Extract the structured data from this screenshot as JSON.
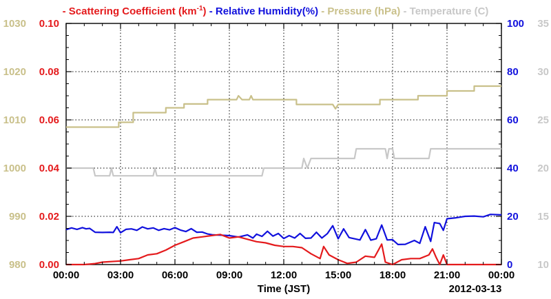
{
  "chart_data": {
    "type": "line",
    "legend": [
      {
        "label": "Scattering Coefficient (km",
        "sup": "-1",
        "suffix": ")",
        "color": "#e41a1c"
      },
      {
        "label": "Relative Humidity(%)",
        "color": "#1111dd"
      },
      {
        "label": "Pressure (hPa)",
        "color": "#c9c08a"
      },
      {
        "label": "Temperature (",
        "suffix": "C)",
        "color": "#c8c8c8"
      }
    ],
    "legend_dash": "-",
    "xlabel": "Time (JST)",
    "date_label": "2012-03-13",
    "x_ticks": [
      "00:00",
      "03:00",
      "06:00",
      "09:00",
      "12:00",
      "15:00",
      "18:00",
      "21:00",
      "00:00"
    ],
    "x_range_hours": [
      0,
      24
    ],
    "axes": {
      "pressure": {
        "side": "left-outer",
        "range": [
          980,
          1030
        ],
        "ticks": [
          "980",
          "990",
          "1000",
          "1010",
          "1020",
          "1030"
        ],
        "color": "#c9c08a"
      },
      "scattering": {
        "side": "left-inner",
        "range": [
          0,
          0.1
        ],
        "ticks": [
          "0.00",
          "0.02",
          "0.04",
          "0.06",
          "0.08",
          "0.10"
        ],
        "color": "#e41a1c"
      },
      "humidity": {
        "side": "right-inner",
        "range": [
          0,
          100
        ],
        "ticks": [
          "0",
          "20",
          "40",
          "60",
          "80",
          "100"
        ],
        "color": "#1111dd"
      },
      "temperature": {
        "side": "right-outer",
        "range": [
          10,
          35
        ],
        "ticks": [
          "10",
          "15",
          "20",
          "25",
          "30",
          "35"
        ],
        "color": "#c8c8c8"
      }
    },
    "grid": "dotted",
    "series": [
      {
        "name": "Pressure (hPa)",
        "axis": "pressure",
        "color": "#c9c08a",
        "points": [
          [
            0,
            1008.5
          ],
          [
            2.9,
            1008.5
          ],
          [
            2.9,
            1009.5
          ],
          [
            3.7,
            1009.5
          ],
          [
            3.7,
            1011.5
          ],
          [
            5.5,
            1011.5
          ],
          [
            5.5,
            1012.5
          ],
          [
            6.5,
            1012.5
          ],
          [
            6.5,
            1013.3
          ],
          [
            7.8,
            1013.3
          ],
          [
            7.8,
            1014.2
          ],
          [
            9.4,
            1014.2
          ],
          [
            9.5,
            1015.0
          ],
          [
            9.7,
            1014.2
          ],
          [
            10.1,
            1014.2
          ],
          [
            10.2,
            1015.0
          ],
          [
            10.3,
            1014.2
          ],
          [
            12.7,
            1014.2
          ],
          [
            12.7,
            1013.2
          ],
          [
            14.7,
            1013.2
          ],
          [
            14.85,
            1012.3
          ],
          [
            15.0,
            1013.2
          ],
          [
            17.3,
            1013.2
          ],
          [
            17.3,
            1014.2
          ],
          [
            19.4,
            1014.2
          ],
          [
            19.4,
            1015.0
          ],
          [
            21.0,
            1015.0
          ],
          [
            21.0,
            1016.0
          ],
          [
            22.5,
            1016.0
          ],
          [
            22.5,
            1017.0
          ],
          [
            24,
            1017.0
          ]
        ]
      },
      {
        "name": "Temperature (C)",
        "axis": "temperature",
        "color": "#c8c8c8",
        "points": [
          [
            0,
            20.0
          ],
          [
            1.5,
            20.0
          ],
          [
            1.6,
            19.2
          ],
          [
            2.4,
            19.2
          ],
          [
            2.5,
            20.0
          ],
          [
            2.6,
            19.2
          ],
          [
            4.8,
            19.2
          ],
          [
            4.9,
            20.0
          ],
          [
            5.0,
            19.2
          ],
          [
            10.8,
            19.2
          ],
          [
            10.9,
            20.0
          ],
          [
            13.0,
            20.0
          ],
          [
            13.1,
            21.0
          ],
          [
            13.3,
            20.0
          ],
          [
            13.5,
            21.0
          ],
          [
            15.9,
            21.0
          ],
          [
            16.0,
            22.0
          ],
          [
            17.6,
            22.0
          ],
          [
            17.7,
            21.0
          ],
          [
            17.8,
            22.0
          ],
          [
            18.0,
            22.0
          ],
          [
            18.1,
            21.0
          ],
          [
            20.0,
            21.0
          ],
          [
            20.1,
            22.0
          ],
          [
            24,
            22.0
          ]
        ]
      },
      {
        "name": "Relative Humidity(%)",
        "axis": "humidity",
        "color": "#1111dd",
        "points": [
          [
            0,
            14.5
          ],
          [
            0.3,
            15.2
          ],
          [
            0.6,
            14.6
          ],
          [
            0.9,
            15.3
          ],
          [
            1.1,
            14.8
          ],
          [
            1.3,
            15.0
          ],
          [
            1.6,
            13.4
          ],
          [
            2.0,
            13.3
          ],
          [
            2.4,
            13.4
          ],
          [
            2.6,
            13.3
          ],
          [
            2.8,
            15.7
          ],
          [
            3.0,
            13.2
          ],
          [
            3.3,
            14.6
          ],
          [
            3.6,
            14.8
          ],
          [
            3.9,
            14.2
          ],
          [
            4.2,
            15.6
          ],
          [
            4.5,
            14.8
          ],
          [
            4.8,
            15.2
          ],
          [
            5.1,
            14.2
          ],
          [
            5.4,
            14.9
          ],
          [
            5.7,
            14.4
          ],
          [
            6.0,
            15.3
          ],
          [
            6.3,
            14.3
          ],
          [
            6.6,
            13.7
          ],
          [
            6.9,
            14.9
          ],
          [
            7.2,
            13.4
          ],
          [
            7.5,
            13.5
          ],
          [
            7.8,
            12.7
          ],
          [
            8.1,
            12.3
          ],
          [
            8.5,
            12.2
          ],
          [
            9.0,
            12.0
          ],
          [
            9.5,
            11.4
          ],
          [
            10.0,
            12.3
          ],
          [
            10.3,
            11.0
          ],
          [
            10.5,
            12.6
          ],
          [
            10.8,
            11.7
          ],
          [
            11.1,
            13.8
          ],
          [
            11.4,
            11.8
          ],
          [
            11.7,
            12.9
          ],
          [
            12.0,
            10.8
          ],
          [
            12.3,
            12.0
          ],
          [
            12.6,
            11.0
          ],
          [
            12.9,
            12.9
          ],
          [
            13.2,
            10.9
          ],
          [
            13.5,
            11.0
          ],
          [
            13.8,
            13.4
          ],
          [
            14.1,
            11.0
          ],
          [
            14.4,
            12.8
          ],
          [
            14.7,
            16.1
          ],
          [
            15.0,
            10.7
          ],
          [
            15.3,
            14.8
          ],
          [
            15.6,
            11.2
          ],
          [
            15.9,
            10.7
          ],
          [
            16.2,
            10.2
          ],
          [
            16.5,
            14.5
          ],
          [
            16.8,
            10.1
          ],
          [
            17.1,
            10.7
          ],
          [
            17.4,
            16.4
          ],
          [
            17.7,
            10.2
          ],
          [
            18.0,
            10.3
          ],
          [
            18.3,
            8.3
          ],
          [
            18.7,
            8.4
          ],
          [
            19.2,
            10.0
          ],
          [
            19.5,
            8.8
          ],
          [
            19.8,
            15.7
          ],
          [
            20.1,
            9.6
          ],
          [
            20.3,
            17.4
          ],
          [
            20.6,
            17.0
          ],
          [
            20.8,
            14.2
          ],
          [
            21.0,
            19.0
          ],
          [
            21.5,
            19.4
          ],
          [
            22.0,
            20.0
          ],
          [
            22.5,
            20.1
          ],
          [
            23.0,
            19.8
          ],
          [
            23.4,
            20.8
          ],
          [
            24,
            20.6
          ]
        ]
      },
      {
        "name": "Scattering Coefficient",
        "axis": "scattering",
        "color": "#e41a1c",
        "points": [
          [
            0,
            0.0
          ],
          [
            1.0,
            0.0
          ],
          [
            1.6,
            0.0004
          ],
          [
            2.0,
            0.001
          ],
          [
            3.0,
            0.0015
          ],
          [
            3.5,
            0.002
          ],
          [
            4.0,
            0.0025
          ],
          [
            4.5,
            0.004
          ],
          [
            5.0,
            0.0045
          ],
          [
            5.5,
            0.006
          ],
          [
            6.0,
            0.008
          ],
          [
            6.5,
            0.0095
          ],
          [
            7.0,
            0.011
          ],
          [
            7.5,
            0.0115
          ],
          [
            8.0,
            0.012
          ],
          [
            8.5,
            0.0125
          ],
          [
            9.0,
            0.011
          ],
          [
            9.5,
            0.0115
          ],
          [
            10.0,
            0.0105
          ],
          [
            10.5,
            0.0095
          ],
          [
            11.0,
            0.009
          ],
          [
            11.5,
            0.008
          ],
          [
            12.0,
            0.0075
          ],
          [
            12.5,
            0.0075
          ],
          [
            13.0,
            0.007
          ],
          [
            13.5,
            0.0045
          ],
          [
            14.0,
            0.0025
          ],
          [
            14.2,
            0.0075
          ],
          [
            14.5,
            0.004
          ],
          [
            15.0,
            0.002
          ],
          [
            15.5,
            0.0005
          ],
          [
            16.0,
            0.001
          ],
          [
            16.5,
            0.0035
          ],
          [
            17.0,
            0.003
          ],
          [
            17.4,
            0.0085
          ],
          [
            17.6,
            0.001
          ],
          [
            18.0,
            0.0
          ],
          [
            18.5,
            0.002
          ],
          [
            19.0,
            0.0025
          ],
          [
            19.5,
            0.0025
          ],
          [
            20.0,
            0.004
          ],
          [
            20.2,
            0.0065
          ],
          [
            20.4,
            0.003
          ],
          [
            20.6,
            0.0
          ],
          [
            20.8,
            0.004
          ],
          [
            21.0,
            0.0
          ],
          [
            23.0,
            0.0
          ],
          [
            23.5,
            0.0
          ],
          [
            24,
            0.0
          ]
        ]
      }
    ]
  }
}
